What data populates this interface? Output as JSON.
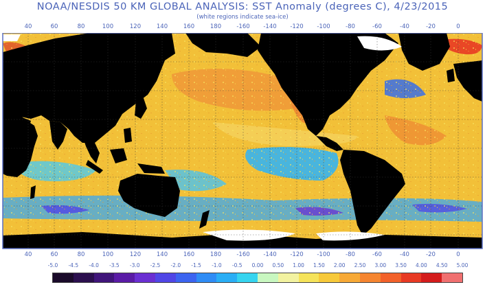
{
  "header": {
    "title": "NOAA/NESDIS 50 KM GLOBAL ANALYSIS: SST Anomaly (degrees C), 4/23/2015",
    "subtitle": "(white regions indicate sea-ice)"
  },
  "longitude_labels": [
    "40",
    "60",
    "80",
    "100",
    "120",
    "140",
    "160",
    "180",
    "-160",
    "-140",
    "-120",
    "-100",
    "-80",
    "-60",
    "-40",
    "-20",
    "0"
  ],
  "colorbar": {
    "labels": [
      "-5.0",
      "-4.5",
      "-4.0",
      "-3.5",
      "-3.0",
      "-2.5",
      "-2.0",
      "-1.5",
      "-1.0",
      "-0.5",
      "0.00",
      "0.50",
      "1.00",
      "1.50",
      "2.00",
      "2.50",
      "3.00",
      "3.50",
      "4.00",
      "4.50",
      "5.00"
    ],
    "colors": [
      "#1a0a2a",
      "#2b0f4e",
      "#40157a",
      "#5a1ba6",
      "#6a2fd2",
      "#5046e6",
      "#3c64f0",
      "#2f8cf5",
      "#2aaef5",
      "#36d4ef",
      "#c8f7c0",
      "#f2f2a0",
      "#f5e35a",
      "#f7c93a",
      "#f7a936",
      "#f58530",
      "#f2612a",
      "#e83a24",
      "#d41c1c",
      "#f07070"
    ]
  },
  "legend_colors": {
    "ocean_base": "#f2c038",
    "land": "#000000",
    "sea_ice": "#ffffff",
    "gridline": "#3a3a3a",
    "label_text": "#4a63b8"
  }
}
